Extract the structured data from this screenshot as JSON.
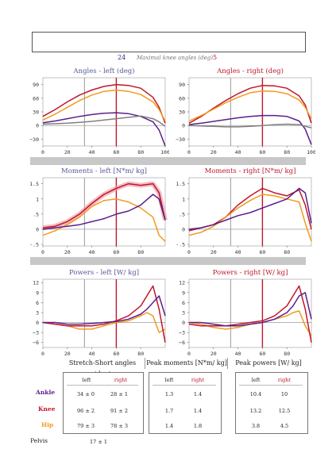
{
  "maximal_knee_angles": {
    "left": "24",
    "label": "Maximal knee angles (deg)",
    "right": "5"
  },
  "colors": {
    "ankle": "#5a1f8c",
    "knee": "#c0162b",
    "hip": "#f29a1d",
    "pelvis": "#808080",
    "left_title": "#55579b",
    "right_title": "#c0162b",
    "band": "#f2a0a8"
  },
  "chart_data": [
    {
      "id": "angles-left",
      "type": "line",
      "title": "Angles - left (deg)",
      "side": "left",
      "xlim": [
        0,
        100
      ],
      "ylim": [
        -45,
        105
      ],
      "xticks": [
        0,
        20,
        40,
        60,
        80,
        100
      ],
      "yticks": [
        -30,
        0,
        30,
        60,
        90
      ],
      "ytick_labels": [
        "−30",
        "0",
        "30",
        "60",
        "90"
      ],
      "gray_line_x": 34,
      "red_line_x": 60,
      "series": [
        {
          "joint": "knee",
          "x": [
            0,
            10,
            20,
            30,
            40,
            50,
            60,
            70,
            80,
            90,
            95,
            100
          ],
          "y": [
            20,
            35,
            52,
            67,
            78,
            86,
            90,
            88,
            82,
            62,
            40,
            5
          ]
        },
        {
          "joint": "hip",
          "x": [
            0,
            10,
            20,
            30,
            40,
            50,
            60,
            70,
            80,
            90,
            95,
            100
          ],
          "y": [
            12,
            25,
            40,
            55,
            67,
            75,
            78,
            75,
            68,
            52,
            35,
            10
          ]
        },
        {
          "joint": "ankle",
          "x": [
            0,
            10,
            20,
            30,
            40,
            50,
            60,
            70,
            80,
            90,
            95,
            100
          ],
          "y": [
            6,
            10,
            15,
            20,
            24,
            27,
            28,
            26,
            20,
            8,
            -10,
            -45
          ]
        },
        {
          "joint": "pelvis",
          "x": [
            0,
            10,
            20,
            30,
            40,
            50,
            60,
            70,
            80,
            90,
            95,
            100
          ],
          "y": [
            3,
            4,
            5,
            7,
            9,
            12,
            15,
            18,
            21,
            15,
            8,
            -2
          ]
        }
      ]
    },
    {
      "id": "angles-right",
      "type": "line",
      "title": "Angles - right (deg)",
      "side": "right",
      "xlim": [
        0,
        100
      ],
      "ylim": [
        -45,
        105
      ],
      "xticks": [
        0,
        20,
        40,
        60,
        80,
        100
      ],
      "yticks": [
        -30,
        0,
        30,
        60,
        90
      ],
      "ytick_labels": [
        "−30",
        "0",
        "30",
        "60",
        "90"
      ],
      "gray_line_x": 34,
      "red_line_x": 60,
      "series": [
        {
          "joint": "knee",
          "x": [
            0,
            10,
            20,
            30,
            40,
            50,
            60,
            70,
            80,
            90,
            95,
            100
          ],
          "y": [
            5,
            20,
            38,
            55,
            70,
            82,
            88,
            87,
            82,
            65,
            45,
            5
          ]
        },
        {
          "joint": "hip",
          "x": [
            0,
            10,
            20,
            30,
            40,
            50,
            60,
            70,
            80,
            90,
            95,
            100
          ],
          "y": [
            10,
            22,
            36,
            50,
            62,
            72,
            76,
            75,
            70,
            56,
            40,
            15
          ]
        },
        {
          "joint": "ankle",
          "x": [
            0,
            10,
            20,
            30,
            40,
            50,
            60,
            70,
            80,
            90,
            95,
            100
          ],
          "y": [
            2,
            5,
            9,
            13,
            17,
            20,
            22,
            22,
            20,
            10,
            -8,
            -42
          ]
        },
        {
          "joint": "pelvis",
          "x": [
            0,
            10,
            20,
            30,
            40,
            50,
            60,
            70,
            80,
            90,
            95,
            100
          ],
          "y": [
            0,
            -1,
            -2,
            -3,
            -3,
            -2,
            0,
            2,
            3,
            2,
            -2,
            -5
          ]
        }
      ]
    },
    {
      "id": "moments-left",
      "type": "line",
      "title": "Moments - left [N*m/ kg]",
      "side": "left",
      "xlim": [
        0,
        100
      ],
      "ylim": [
        -0.55,
        1.7
      ],
      "xticks": [
        0,
        20,
        40,
        60,
        80
      ],
      "yticks": [
        -0.5,
        0,
        0.5,
        1,
        1.5
      ],
      "ytick_labels": [
        "-.5",
        "0",
        ".5",
        "1",
        "1.5"
      ],
      "gray_line_x": 34,
      "red_line_x": 60,
      "band_joint": "knee",
      "series": [
        {
          "joint": "knee",
          "x": [
            0,
            10,
            20,
            30,
            40,
            50,
            60,
            70,
            80,
            90,
            95,
            100
          ],
          "y": [
            0.05,
            0.1,
            0.25,
            0.5,
            0.85,
            1.15,
            1.35,
            1.5,
            1.45,
            1.5,
            1.2,
            0.3
          ]
        },
        {
          "joint": "hip",
          "x": [
            0,
            10,
            20,
            30,
            40,
            50,
            60,
            70,
            80,
            90,
            95,
            100
          ],
          "y": [
            -0.2,
            -0.05,
            0.15,
            0.4,
            0.75,
            0.95,
            1.0,
            0.9,
            0.7,
            0.4,
            -0.2,
            -0.4
          ]
        },
        {
          "joint": "ankle",
          "x": [
            0,
            10,
            20,
            30,
            40,
            50,
            60,
            70,
            80,
            90,
            95,
            100
          ],
          "y": [
            0,
            0.05,
            0.1,
            0.15,
            0.25,
            0.35,
            0.5,
            0.6,
            0.8,
            1.15,
            1.0,
            0.3
          ]
        }
      ]
    },
    {
      "id": "moments-right",
      "type": "line",
      "title": "Moments - right [N*m/ kg]",
      "side": "right",
      "xlim": [
        0,
        100
      ],
      "ylim": [
        -0.55,
        1.7
      ],
      "xticks": [
        0,
        20,
        40,
        60,
        80
      ],
      "yticks": [
        -0.5,
        0,
        0.5,
        1,
        1.5
      ],
      "ytick_labels": [
        "-.5",
        "0",
        ".5",
        "1",
        "1.5"
      ],
      "gray_line_x": 34,
      "red_line_x": 60,
      "series": [
        {
          "joint": "knee",
          "x": [
            0,
            10,
            20,
            30,
            40,
            50,
            60,
            70,
            80,
            90,
            95,
            100
          ],
          "y": [
            -0.05,
            0.05,
            0.15,
            0.4,
            0.8,
            1.1,
            1.35,
            1.2,
            1.1,
            1.3,
            0.8,
            0.0
          ]
        },
        {
          "joint": "hip",
          "x": [
            0,
            10,
            20,
            30,
            40,
            50,
            60,
            70,
            80,
            90,
            95,
            100
          ],
          "y": [
            -0.2,
            -0.1,
            0.1,
            0.4,
            0.7,
            0.95,
            1.15,
            1.1,
            1.0,
            0.9,
            0.2,
            -0.4
          ]
        },
        {
          "joint": "ankle",
          "x": [
            0,
            10,
            20,
            30,
            40,
            50,
            60,
            70,
            80,
            90,
            95,
            100
          ],
          "y": [
            0,
            0.05,
            0.15,
            0.3,
            0.45,
            0.55,
            0.7,
            0.85,
            1.0,
            1.35,
            1.2,
            0.2
          ]
        }
      ]
    },
    {
      "id": "powers-left",
      "type": "line",
      "title": "Powers - left [W/ kg]",
      "side": "left",
      "xlim": [
        0,
        100
      ],
      "ylim": [
        -7.5,
        13
      ],
      "xticks": [
        0,
        20,
        40,
        60,
        80
      ],
      "yticks": [
        -6,
        -3,
        0,
        3,
        6,
        9,
        12
      ],
      "ytick_labels": [
        "−6",
        "−3",
        "0",
        "3",
        "6",
        "9",
        "12"
      ],
      "gray_line_x": 34,
      "red_line_x": 60,
      "series": [
        {
          "joint": "hip",
          "x": [
            0,
            10,
            20,
            30,
            40,
            50,
            60,
            70,
            80,
            85,
            90,
            95,
            100
          ],
          "y": [
            0,
            -0.5,
            -1,
            -2,
            -2,
            -1,
            0,
            0.5,
            2,
            3,
            2,
            -3,
            -2
          ]
        },
        {
          "joint": "knee",
          "x": [
            0,
            10,
            20,
            30,
            40,
            50,
            60,
            70,
            80,
            85,
            90,
            95,
            100
          ],
          "y": [
            0,
            -0.5,
            -1,
            -1,
            -1,
            -0.5,
            0.5,
            2,
            5,
            8,
            11,
            4,
            -6
          ]
        },
        {
          "joint": "ankle",
          "x": [
            0,
            10,
            20,
            30,
            40,
            50,
            60,
            70,
            80,
            85,
            90,
            95,
            100
          ],
          "y": [
            0,
            0,
            -0.5,
            -0.5,
            -0.3,
            0,
            0.3,
            1,
            2.5,
            4,
            6,
            8,
            2
          ]
        }
      ]
    },
    {
      "id": "powers-right",
      "type": "line",
      "title": "Powers - right [W/ kg]",
      "side": "right",
      "xlim": [
        0,
        100
      ],
      "ylim": [
        -7.5,
        13
      ],
      "xticks": [
        0,
        20,
        40,
        60,
        80
      ],
      "yticks": [
        -6,
        -3,
        0,
        3,
        6,
        9,
        12
      ],
      "ytick_labels": [
        "−6",
        "−3",
        "0",
        "3",
        "6",
        "9",
        "12"
      ],
      "gray_line_x": 34,
      "red_line_x": 60,
      "series": [
        {
          "joint": "hip",
          "x": [
            0,
            10,
            20,
            30,
            40,
            50,
            60,
            70,
            80,
            85,
            90,
            95,
            100
          ],
          "y": [
            0,
            -0.5,
            -1.5,
            -2,
            -1.5,
            -0.5,
            0,
            1,
            2,
            3,
            3.5,
            -1,
            -4
          ]
        },
        {
          "joint": "knee",
          "x": [
            0,
            10,
            20,
            30,
            40,
            50,
            60,
            70,
            80,
            85,
            90,
            95,
            100
          ],
          "y": [
            -0.5,
            -1,
            -1,
            -1,
            -0.5,
            0,
            0.5,
            2,
            5,
            8,
            11,
            4,
            -6
          ]
        },
        {
          "joint": "ankle",
          "x": [
            0,
            10,
            20,
            30,
            40,
            50,
            60,
            70,
            80,
            85,
            90,
            95,
            100
          ],
          "y": [
            0,
            0,
            -0.5,
            -1,
            -1,
            -0.5,
            0,
            1,
            3,
            5,
            8,
            9,
            1
          ]
        }
      ]
    }
  ],
  "tables": {
    "stretch": {
      "header": "Stretch-Short angles (deg)",
      "cols": [
        "left",
        "right"
      ],
      "rows": [
        {
          "joint": "Ankle",
          "left": "34 ± 0",
          "right": "28 ± 1"
        },
        {
          "joint": "Knee",
          "left": "96 ± 2",
          "right": "91 ± 2"
        },
        {
          "joint": "Hip",
          "left": "79 ± 3",
          "right": "78 ± 3"
        }
      ],
      "pelvis": {
        "label": "Pelvis",
        "value": "17 ± 1"
      }
    },
    "moments": {
      "header": "Peak moments [N*m/ kg]",
      "cols": [
        "left",
        "right"
      ],
      "rows": [
        {
          "left": "1.3",
          "right": "1.4"
        },
        {
          "left": "1.7",
          "right": "1.4"
        },
        {
          "left": "1.4",
          "right": "1.8"
        }
      ]
    },
    "powers": {
      "header": "Peak powers [W/ kg]",
      "cols": [
        "left",
        "right"
      ],
      "rows": [
        {
          "left": "10.4",
          "right": "10"
        },
        {
          "left": "13.2",
          "right": "12.5"
        },
        {
          "left": "3.8",
          "right": "4.5"
        }
      ]
    }
  }
}
